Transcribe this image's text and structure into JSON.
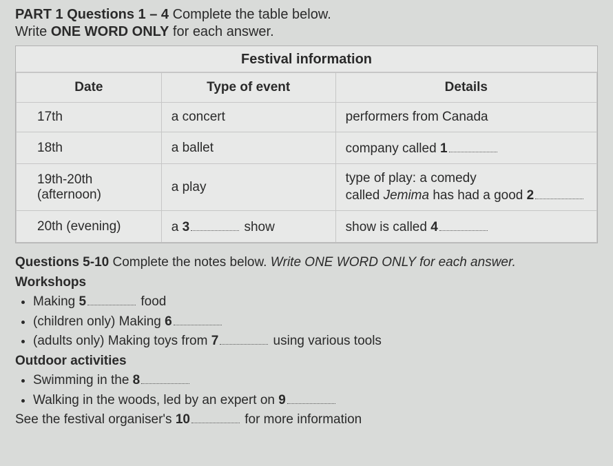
{
  "header": {
    "part_label": "PART 1",
    "q_range": "Questions 1 – 4",
    "instr1_rest": " Complete the table below.",
    "instr2_a": "Write ",
    "instr2_b": "ONE WORD ONLY",
    "instr2_c": " for each answer."
  },
  "table": {
    "title": "Festival information",
    "cols": {
      "c1": "Date",
      "c2": "Type of event",
      "c3": "Details"
    },
    "rows": [
      {
        "date": "17th",
        "event": "a concert",
        "detail_text": "performers from Canada",
        "has_blank": false
      },
      {
        "date": "18th",
        "event": "a ballet",
        "detail_prefix": "company called ",
        "blank_num": "1",
        "has_blank": true
      },
      {
        "date": "19th-20th (afternoon)",
        "event": "a play",
        "detail_line1": "type of play: a comedy",
        "detail_line2a": "called ",
        "detail_line2_italic": "Jemima",
        "detail_line2b": " has had a good ",
        "blank_num": "2",
        "multiline": true
      },
      {
        "date": "20th (evening)",
        "event_prefix": "a ",
        "event_blank_num": "3",
        "event_suffix": " show",
        "detail_prefix": "show is called ",
        "blank_num": "4",
        "event_has_blank": true,
        "has_blank": true
      }
    ]
  },
  "notes": {
    "q_line_a": "Questions 5-10",
    "q_line_b": " Complete the notes below. ",
    "q_line_c": "Write ONE WORD ONLY for each answer.",
    "section1": "Workshops",
    "b1_a": "Making ",
    "b1_num": "5",
    "b1_b": " food",
    "b2_a": "(children only) Making ",
    "b2_num": "6",
    "b3_a": "(adults only) Making toys from ",
    "b3_num": "7",
    "b3_b": " using various tools",
    "section2": "Outdoor activities",
    "b4_a": "Swimming in the ",
    "b4_num": "8",
    "b5_a": "Walking in the woods, led by an expert on ",
    "b5_num": "9",
    "footer_a": "See the festival organiser's ",
    "footer_num": "10",
    "footer_b": " for more information"
  }
}
